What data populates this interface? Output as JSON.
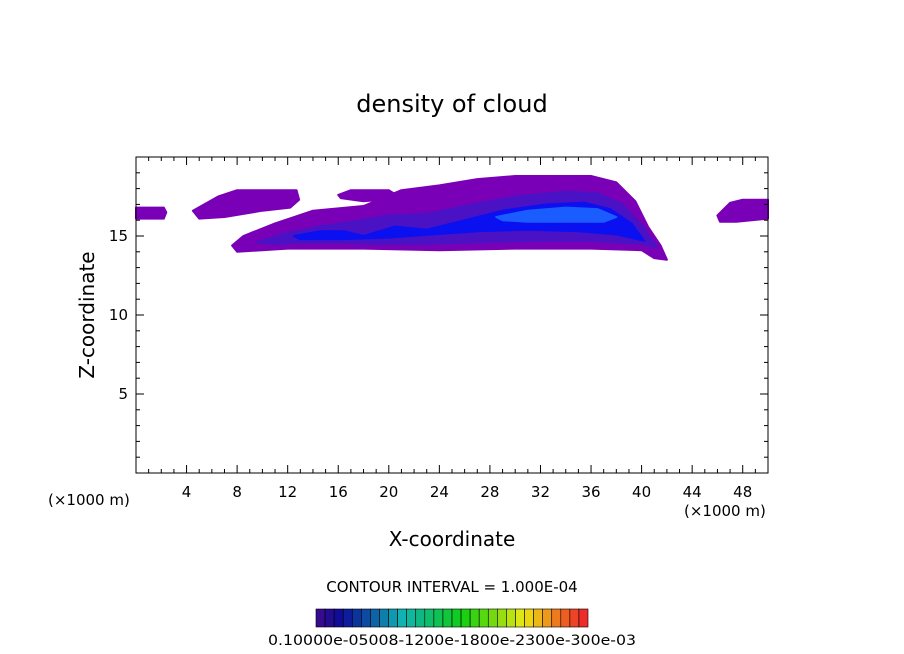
{
  "chart_data": {
    "type": "heatmap",
    "title": "density of cloud",
    "xlabel": "X-coordinate",
    "ylabel": "Z-coordinate",
    "x_unit_left": "(×1000 m)",
    "x_unit_right": "(×1000 m)",
    "xlim": [
      0,
      50
    ],
    "ylim": [
      0,
      20
    ],
    "x_ticks": [
      4,
      8,
      12,
      16,
      20,
      24,
      28,
      32,
      36,
      40,
      44,
      48
    ],
    "y_ticks": [
      5,
      10,
      15
    ],
    "contour_interval_text": "CONTOUR INTERVAL = 1.000E-04",
    "colorbar_label_text": "0.10000e-05008-1200e-1800e-2300e-300e-03",
    "colorbar_levels": 30,
    "colors": {
      "outer": "#7a00b8",
      "mid": "#4a12c4",
      "core": "#0a10f0",
      "peak": "#1b5cff"
    },
    "regions": [
      {
        "name": "left-edge patch",
        "outline": [
          [
            0,
            16.8
          ],
          [
            2.2,
            16.8
          ],
          [
            2.4,
            16.5
          ],
          [
            2.2,
            16.1
          ],
          [
            0,
            16.1
          ]
        ],
        "level": 1
      },
      {
        "name": "upper-left patch",
        "outline": [
          [
            4.5,
            16.6
          ],
          [
            6.5,
            17.5
          ],
          [
            8,
            17.9
          ],
          [
            12.7,
            17.9
          ],
          [
            12.9,
            17.3
          ],
          [
            12.2,
            16.8
          ],
          [
            10,
            16.6
          ],
          [
            7,
            16.2
          ],
          [
            5,
            16.1
          ]
        ],
        "level": 1
      },
      {
        "name": "upper-mid patch",
        "outline": [
          [
            16,
            17.6
          ],
          [
            17,
            17.9
          ],
          [
            20,
            17.9
          ],
          [
            21,
            17.4
          ],
          [
            18,
            17.2
          ],
          [
            16.2,
            17.4
          ]
        ],
        "level": 1
      },
      {
        "name": "right-edge patch",
        "outline": [
          [
            46,
            16.3
          ],
          [
            47,
            17.1
          ],
          [
            48,
            17.3
          ],
          [
            50,
            17.3
          ],
          [
            50,
            16.1
          ],
          [
            47.5,
            15.9
          ],
          [
            46.2,
            15.9
          ]
        ],
        "level": 1
      },
      {
        "name": "main cloud outer",
        "outline": [
          [
            7.6,
            14.4
          ],
          [
            8.5,
            15
          ],
          [
            11,
            15.8
          ],
          [
            14,
            16.6
          ],
          [
            18,
            16.9
          ],
          [
            21,
            17.9
          ],
          [
            24,
            18.2
          ],
          [
            27,
            18.6
          ],
          [
            30,
            18.8
          ],
          [
            36,
            18.8
          ],
          [
            38,
            18.4
          ],
          [
            39.5,
            17.2
          ],
          [
            40.5,
            15.6
          ],
          [
            41.5,
            14.4
          ],
          [
            42,
            13.5
          ],
          [
            41,
            13.6
          ],
          [
            40,
            14.1
          ],
          [
            36,
            14.2
          ],
          [
            30,
            14.2
          ],
          [
            24,
            14.1
          ],
          [
            18,
            14.2
          ],
          [
            12,
            14.2
          ],
          [
            8,
            14.0
          ]
        ],
        "level": 1
      },
      {
        "name": "main cloud mid",
        "outline": [
          [
            9.5,
            14.6
          ],
          [
            12,
            15.2
          ],
          [
            14.5,
            15.6
          ],
          [
            17,
            15.9
          ],
          [
            20,
            16.3
          ],
          [
            23,
            16.4
          ],
          [
            26,
            16.9
          ],
          [
            30,
            17.5
          ],
          [
            34,
            17.8
          ],
          [
            36.5,
            17.7
          ],
          [
            38.5,
            17.0
          ],
          [
            40,
            15.7
          ],
          [
            41.2,
            14.3
          ],
          [
            40,
            14.5
          ],
          [
            36,
            14.7
          ],
          [
            32,
            14.7
          ],
          [
            27,
            14.6
          ],
          [
            23,
            14.5
          ],
          [
            19,
            14.5
          ],
          [
            15,
            14.6
          ],
          [
            11,
            14.5
          ]
        ],
        "level": 2
      },
      {
        "name": "main cloud core",
        "outline": [
          [
            12.5,
            15.0
          ],
          [
            14.5,
            15.3
          ],
          [
            16.5,
            15.3
          ],
          [
            18,
            15.0
          ],
          [
            20.5,
            15.6
          ],
          [
            23,
            15.4
          ],
          [
            25.5,
            15.9
          ],
          [
            29,
            16.6
          ],
          [
            32.5,
            17.0
          ],
          [
            35.5,
            17.1
          ],
          [
            37.5,
            16.7
          ],
          [
            39.2,
            15.8
          ],
          [
            40.2,
            14.7
          ],
          [
            38,
            15.1
          ],
          [
            35,
            15.3
          ],
          [
            31,
            15.4
          ],
          [
            27,
            15.3
          ],
          [
            23.5,
            15.1
          ],
          [
            20,
            14.9
          ],
          [
            16,
            14.8
          ],
          [
            13,
            14.8
          ]
        ],
        "level": 3
      },
      {
        "name": "main cloud peak",
        "outline": [
          [
            28.5,
            16.2
          ],
          [
            31,
            16.6
          ],
          [
            34,
            16.8
          ],
          [
            36.5,
            16.7
          ],
          [
            38,
            16.2
          ],
          [
            37,
            15.9
          ],
          [
            34,
            15.9
          ],
          [
            31,
            15.9
          ],
          [
            29,
            16.0
          ]
        ],
        "level": 4
      }
    ]
  }
}
